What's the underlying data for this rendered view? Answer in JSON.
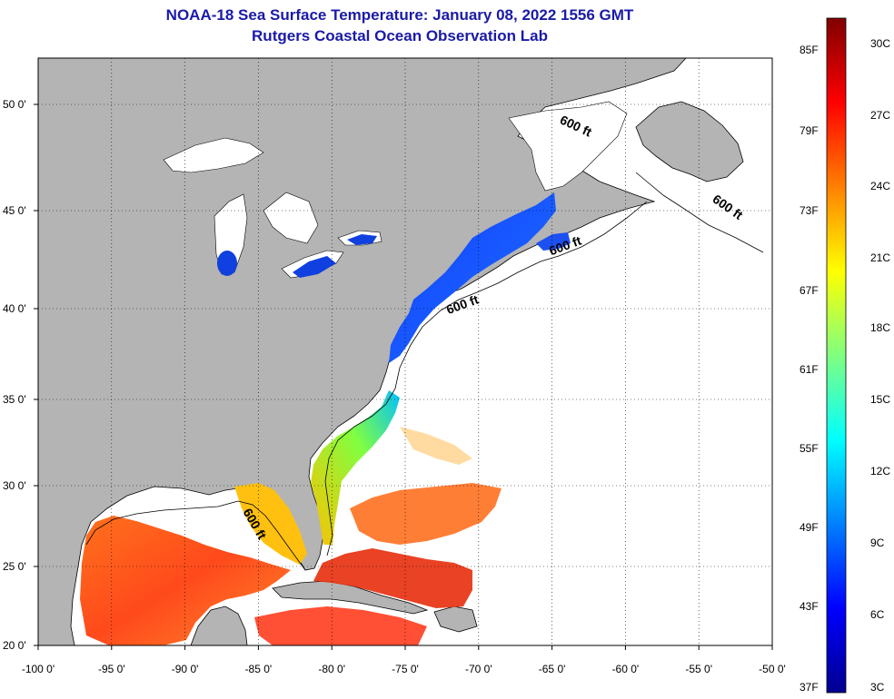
{
  "title": "NOAA-18 Sea Surface Temperature:  January 08, 2022 1556 GMT",
  "subtitle": "Rutgers Coastal Ocean Observation Lab",
  "map": {
    "lon_range": [
      -100,
      -50
    ],
    "lat_range": [
      20,
      52
    ],
    "lon_ticks": [
      {
        "value": -100,
        "label": "-100 0'"
      },
      {
        "value": -95,
        "label": "-95 0'"
      },
      {
        "value": -90,
        "label": "-90 0'"
      },
      {
        "value": -85,
        "label": "-85 0'"
      },
      {
        "value": -80,
        "label": "-80 0'"
      },
      {
        "value": -75,
        "label": "-75 0'"
      },
      {
        "value": -70,
        "label": "-70 0'"
      },
      {
        "value": -65,
        "label": "-65 0'"
      },
      {
        "value": -60,
        "label": "-60 0'"
      },
      {
        "value": -55,
        "label": "-55 0'"
      },
      {
        "value": -50,
        "label": "-50 0'"
      }
    ],
    "lat_ticks": [
      {
        "value": 20,
        "label": "20 0'"
      },
      {
        "value": 25,
        "label": "25 0'"
      },
      {
        "value": 30,
        "label": "30 0'"
      },
      {
        "value": 35,
        "label": "35 0'"
      },
      {
        "value": 40,
        "label": "40 0'"
      },
      {
        "value": 45,
        "label": "45 0'"
      },
      {
        "value": 50,
        "label": "50 0'"
      }
    ],
    "grid": "dotted",
    "land_color": "#b4b4b4",
    "no_data_color": "#ffffff",
    "isobath_labels": [
      {
        "text": "600 ft",
        "lon": -63.5,
        "lat": 48.8
      },
      {
        "text": "600 ft",
        "lon": -53.2,
        "lat": 45.0
      },
      {
        "text": "600 ft",
        "lon": -64.0,
        "lat": 43.0
      },
      {
        "text": "600 ft",
        "lon": -71.0,
        "lat": 40.0
      },
      {
        "text": "600 ft",
        "lon": -85.5,
        "lat": 27.5
      }
    ]
  },
  "colorbar": {
    "f_labels": [
      "85F",
      "79F",
      "73F",
      "67F",
      "61F",
      "55F",
      "49F",
      "43F",
      "37F"
    ],
    "c_labels": [
      "30C",
      "27C",
      "24C",
      "21C",
      "18C",
      "15C",
      "12C",
      "9C",
      "6C",
      "3C"
    ],
    "colors": [
      "#00008f",
      "#0000ff",
      "#0080ff",
      "#00ffff",
      "#80ff80",
      "#ffff00",
      "#ff8000",
      "#ff0000",
      "#800000"
    ]
  }
}
